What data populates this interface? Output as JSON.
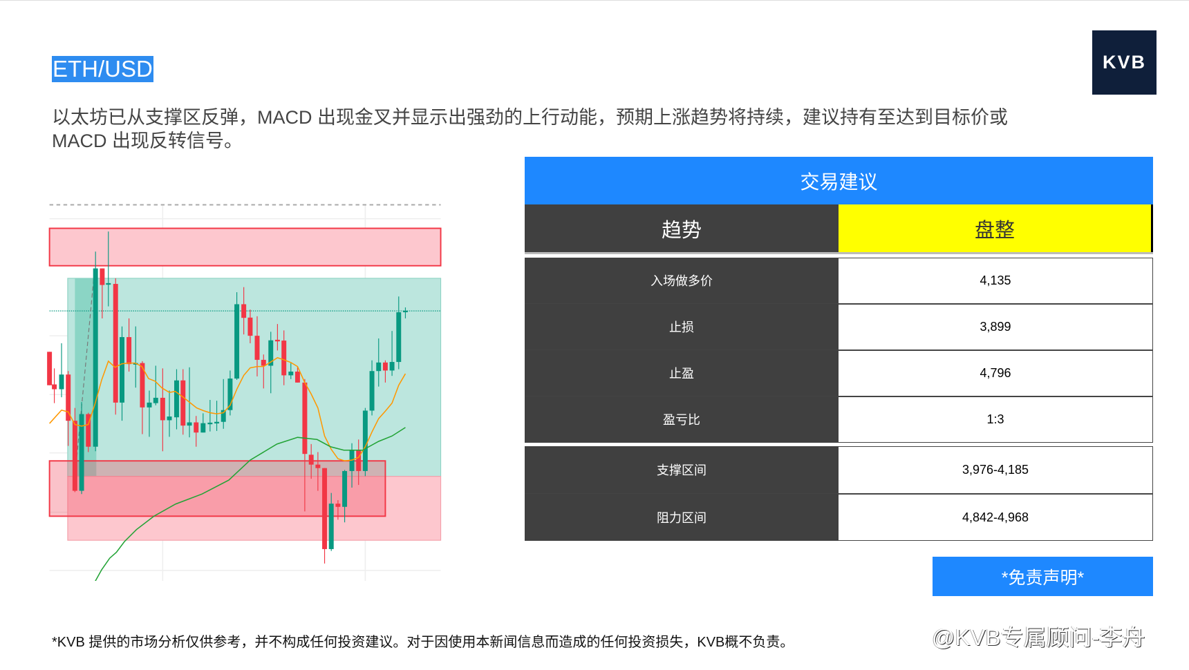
{
  "header": {
    "title": "ETH/USD",
    "logo": "KVB"
  },
  "summary": "以太坊已从支撑区反弹，MACD 出现金叉并显示出强劲的上行动能，预期上涨趋势将持续，建议持有至达到目标价或 MACD 出现反转信号。",
  "table": {
    "title": "交易建议",
    "trend": {
      "label": "趋势",
      "value": "盘整"
    },
    "rows": [
      {
        "label": "入场做多价",
        "value": "4,135"
      },
      {
        "label": "止损",
        "value": "3,899"
      },
      {
        "label": "止盈",
        "value": "4,796"
      },
      {
        "label": "盈亏比",
        "value": "1:3"
      }
    ],
    "zones": [
      {
        "label": "支撑区间",
        "value": "3,976-4,185"
      },
      {
        "label": "阻力区间",
        "value": "4,842-4,968"
      }
    ]
  },
  "disclaimer_button": "*免责声明*",
  "footer": "*KVB 提供的市场分析仅供参考，并不构成任何投资建议。对于因使用本新闻信息而造成的任何投资损失，KVB概不负责。",
  "watermark": "@KVB专属顾问-李舟",
  "colors": {
    "accent": "#1e88ff",
    "up": "#089981",
    "down": "#f23645",
    "trend_highlight": "#ffff00",
    "dark_cell": "#404040"
  }
}
